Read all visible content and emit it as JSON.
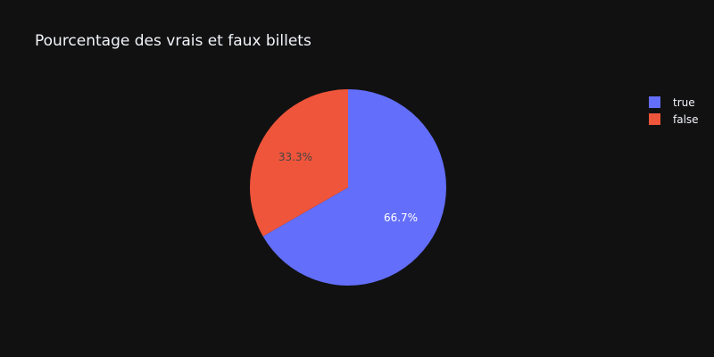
{
  "chart_data": {
    "type": "pie",
    "title": "Pourcentage des vrais et faux billets",
    "slices": [
      {
        "label": "true",
        "value": 66.7,
        "text": "66.7%",
        "color": "#636efa",
        "text_color": "#ffffff"
      },
      {
        "label": "false",
        "value": 33.3,
        "text": "33.3%",
        "color": "#ef553b",
        "text_color": "#444444"
      }
    ],
    "start_angle_deg": 90,
    "direction": "clockwise",
    "legend_position": "top-right"
  },
  "colors": {
    "background": "#111111",
    "text": "#f2f5fa"
  }
}
